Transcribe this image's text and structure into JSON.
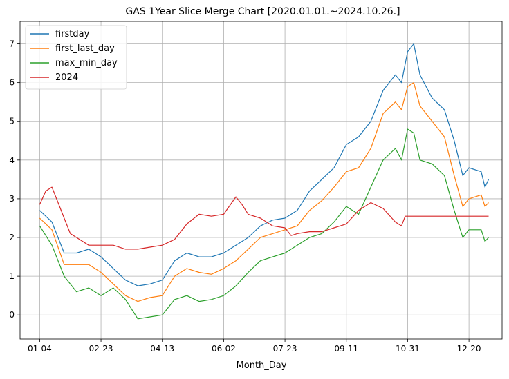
{
  "chart_data": {
    "type": "line",
    "title": "GAS 1Year Slice Merge Chart [2020.01.01.~2024.10.26.]",
    "xlabel": "Month_Day",
    "ylabel": "",
    "x_ticks": [
      "01-04",
      "02-23",
      "04-13",
      "06-02",
      "07-23",
      "09-11",
      "10-31",
      "12-20"
    ],
    "x_tick_index": [
      0,
      50,
      100,
      150,
      200,
      250,
      300,
      350
    ],
    "x_range": [
      -16,
      377
    ],
    "y_ticks": [
      0,
      1,
      2,
      3,
      4,
      5,
      6,
      7
    ],
    "ylim": [
      -0.62,
      7.58
    ],
    "grid": true,
    "legend_position": "top-left",
    "series": [
      {
        "name": "firstday",
        "color": "#1f77b4",
        "points": [
          [
            0,
            2.7
          ],
          [
            10,
            2.4
          ],
          [
            20,
            1.6
          ],
          [
            30,
            1.6
          ],
          [
            40,
            1.7
          ],
          [
            50,
            1.5
          ],
          [
            60,
            1.2
          ],
          [
            70,
            0.9
          ],
          [
            80,
            0.75
          ],
          [
            90,
            0.8
          ],
          [
            100,
            0.9
          ],
          [
            110,
            1.4
          ],
          [
            120,
            1.6
          ],
          [
            130,
            1.5
          ],
          [
            140,
            1.5
          ],
          [
            150,
            1.6
          ],
          [
            160,
            1.8
          ],
          [
            170,
            2.0
          ],
          [
            180,
            2.3
          ],
          [
            190,
            2.45
          ],
          [
            200,
            2.5
          ],
          [
            210,
            2.7
          ],
          [
            220,
            3.2
          ],
          [
            230,
            3.5
          ],
          [
            240,
            3.8
          ],
          [
            250,
            4.4
          ],
          [
            260,
            4.6
          ],
          [
            270,
            5.0
          ],
          [
            280,
            5.8
          ],
          [
            290,
            6.2
          ],
          [
            295,
            6.0
          ],
          [
            300,
            6.8
          ],
          [
            305,
            7.0
          ],
          [
            310,
            6.2
          ],
          [
            320,
            5.6
          ],
          [
            330,
            5.3
          ],
          [
            338,
            4.5
          ],
          [
            345,
            3.6
          ],
          [
            350,
            3.8
          ],
          [
            360,
            3.7
          ],
          [
            363,
            3.3
          ],
          [
            366,
            3.5
          ]
        ]
      },
      {
        "name": "first_last_day",
        "color": "#ff7f0e",
        "points": [
          [
            0,
            2.5
          ],
          [
            10,
            2.2
          ],
          [
            20,
            1.3
          ],
          [
            30,
            1.3
          ],
          [
            40,
            1.3
          ],
          [
            50,
            1.1
          ],
          [
            60,
            0.8
          ],
          [
            70,
            0.5
          ],
          [
            80,
            0.35
          ],
          [
            90,
            0.45
          ],
          [
            100,
            0.5
          ],
          [
            110,
            1.0
          ],
          [
            120,
            1.2
          ],
          [
            130,
            1.1
          ],
          [
            140,
            1.05
          ],
          [
            150,
            1.2
          ],
          [
            160,
            1.4
          ],
          [
            170,
            1.7
          ],
          [
            180,
            2.0
          ],
          [
            190,
            2.1
          ],
          [
            200,
            2.2
          ],
          [
            210,
            2.3
          ],
          [
            220,
            2.7
          ],
          [
            230,
            2.95
          ],
          [
            240,
            3.3
          ],
          [
            250,
            3.7
          ],
          [
            260,
            3.8
          ],
          [
            270,
            4.3
          ],
          [
            280,
            5.2
          ],
          [
            290,
            5.5
          ],
          [
            295,
            5.3
          ],
          [
            300,
            5.9
          ],
          [
            305,
            6.0
          ],
          [
            310,
            5.4
          ],
          [
            320,
            5.0
          ],
          [
            330,
            4.6
          ],
          [
            338,
            3.6
          ],
          [
            345,
            2.8
          ],
          [
            350,
            3.0
          ],
          [
            360,
            3.1
          ],
          [
            363,
            2.8
          ],
          [
            366,
            2.9
          ]
        ]
      },
      {
        "name": "max_min_day",
        "color": "#2ca02c",
        "points": [
          [
            0,
            2.3
          ],
          [
            10,
            1.8
          ],
          [
            20,
            1.0
          ],
          [
            30,
            0.6
          ],
          [
            40,
            0.7
          ],
          [
            50,
            0.5
          ],
          [
            60,
            0.7
          ],
          [
            70,
            0.4
          ],
          [
            80,
            -0.1
          ],
          [
            90,
            -0.05
          ],
          [
            100,
            0.0
          ],
          [
            110,
            0.4
          ],
          [
            120,
            0.5
          ],
          [
            130,
            0.35
          ],
          [
            140,
            0.4
          ],
          [
            150,
            0.5
          ],
          [
            160,
            0.75
          ],
          [
            170,
            1.1
          ],
          [
            180,
            1.4
          ],
          [
            190,
            1.5
          ],
          [
            200,
            1.6
          ],
          [
            210,
            1.8
          ],
          [
            220,
            2.0
          ],
          [
            230,
            2.1
          ],
          [
            240,
            2.4
          ],
          [
            250,
            2.8
          ],
          [
            260,
            2.6
          ],
          [
            270,
            3.3
          ],
          [
            280,
            4.0
          ],
          [
            290,
            4.3
          ],
          [
            295,
            4.0
          ],
          [
            300,
            4.8
          ],
          [
            305,
            4.7
          ],
          [
            310,
            4.0
          ],
          [
            320,
            3.9
          ],
          [
            330,
            3.6
          ],
          [
            338,
            2.7
          ],
          [
            345,
            2.0
          ],
          [
            350,
            2.2
          ],
          [
            360,
            2.2
          ],
          [
            363,
            1.9
          ],
          [
            366,
            2.0
          ]
        ]
      },
      {
        "name": "2024",
        "color": "#d62728",
        "points": [
          [
            0,
            2.85
          ],
          [
            5,
            3.2
          ],
          [
            10,
            3.3
          ],
          [
            15,
            2.9
          ],
          [
            20,
            2.5
          ],
          [
            25,
            2.1
          ],
          [
            30,
            2.0
          ],
          [
            40,
            1.8
          ],
          [
            50,
            1.8
          ],
          [
            60,
            1.8
          ],
          [
            70,
            1.7
          ],
          [
            80,
            1.7
          ],
          [
            90,
            1.75
          ],
          [
            100,
            1.8
          ],
          [
            110,
            1.95
          ],
          [
            120,
            2.35
          ],
          [
            130,
            2.6
          ],
          [
            140,
            2.55
          ],
          [
            150,
            2.6
          ],
          [
            160,
            3.05
          ],
          [
            165,
            2.85
          ],
          [
            170,
            2.6
          ],
          [
            180,
            2.5
          ],
          [
            190,
            2.3
          ],
          [
            200,
            2.25
          ],
          [
            205,
            2.05
          ],
          [
            210,
            2.1
          ],
          [
            220,
            2.15
          ],
          [
            230,
            2.15
          ],
          [
            240,
            2.25
          ],
          [
            250,
            2.35
          ],
          [
            260,
            2.7
          ],
          [
            270,
            2.9
          ],
          [
            280,
            2.75
          ],
          [
            290,
            2.4
          ],
          [
            295,
            2.3
          ],
          [
            298,
            2.55
          ],
          [
            310,
            2.55
          ],
          [
            330,
            2.55
          ],
          [
            350,
            2.55
          ],
          [
            366,
            2.55
          ]
        ]
      }
    ]
  }
}
